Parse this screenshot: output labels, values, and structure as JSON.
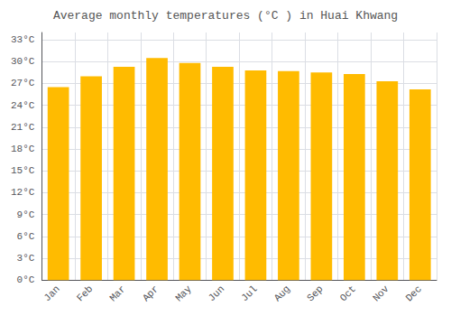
{
  "chart_data": {
    "type": "bar",
    "title": "Average monthly temperatures (°C ) in Huai Khwang",
    "categories": [
      "Jan",
      "Feb",
      "Mar",
      "Apr",
      "May",
      "Jun",
      "Jul",
      "Aug",
      "Sep",
      "Oct",
      "Nov",
      "Dec"
    ],
    "values": [
      26.5,
      28.0,
      29.3,
      30.5,
      29.8,
      29.3,
      28.8,
      28.7,
      28.5,
      28.3,
      27.3,
      26.2
    ],
    "color": "#FFBB00",
    "ylim": [
      0,
      34
    ],
    "yticks": [
      {
        "value": 0,
        "label": "0°C"
      },
      {
        "value": 3,
        "label": "3°C"
      },
      {
        "value": 6,
        "label": "6°C"
      },
      {
        "value": 9,
        "label": "9°C"
      },
      {
        "value": 12,
        "label": "12°C"
      },
      {
        "value": 15,
        "label": "15°C"
      },
      {
        "value": 18,
        "label": "18°C"
      },
      {
        "value": 21,
        "label": "21°C"
      },
      {
        "value": 24,
        "label": "24°C"
      },
      {
        "value": 27,
        "label": "27°C"
      },
      {
        "value": 30,
        "label": "30°C"
      },
      {
        "value": 33,
        "label": "33°C"
      }
    ],
    "grid": true
  }
}
